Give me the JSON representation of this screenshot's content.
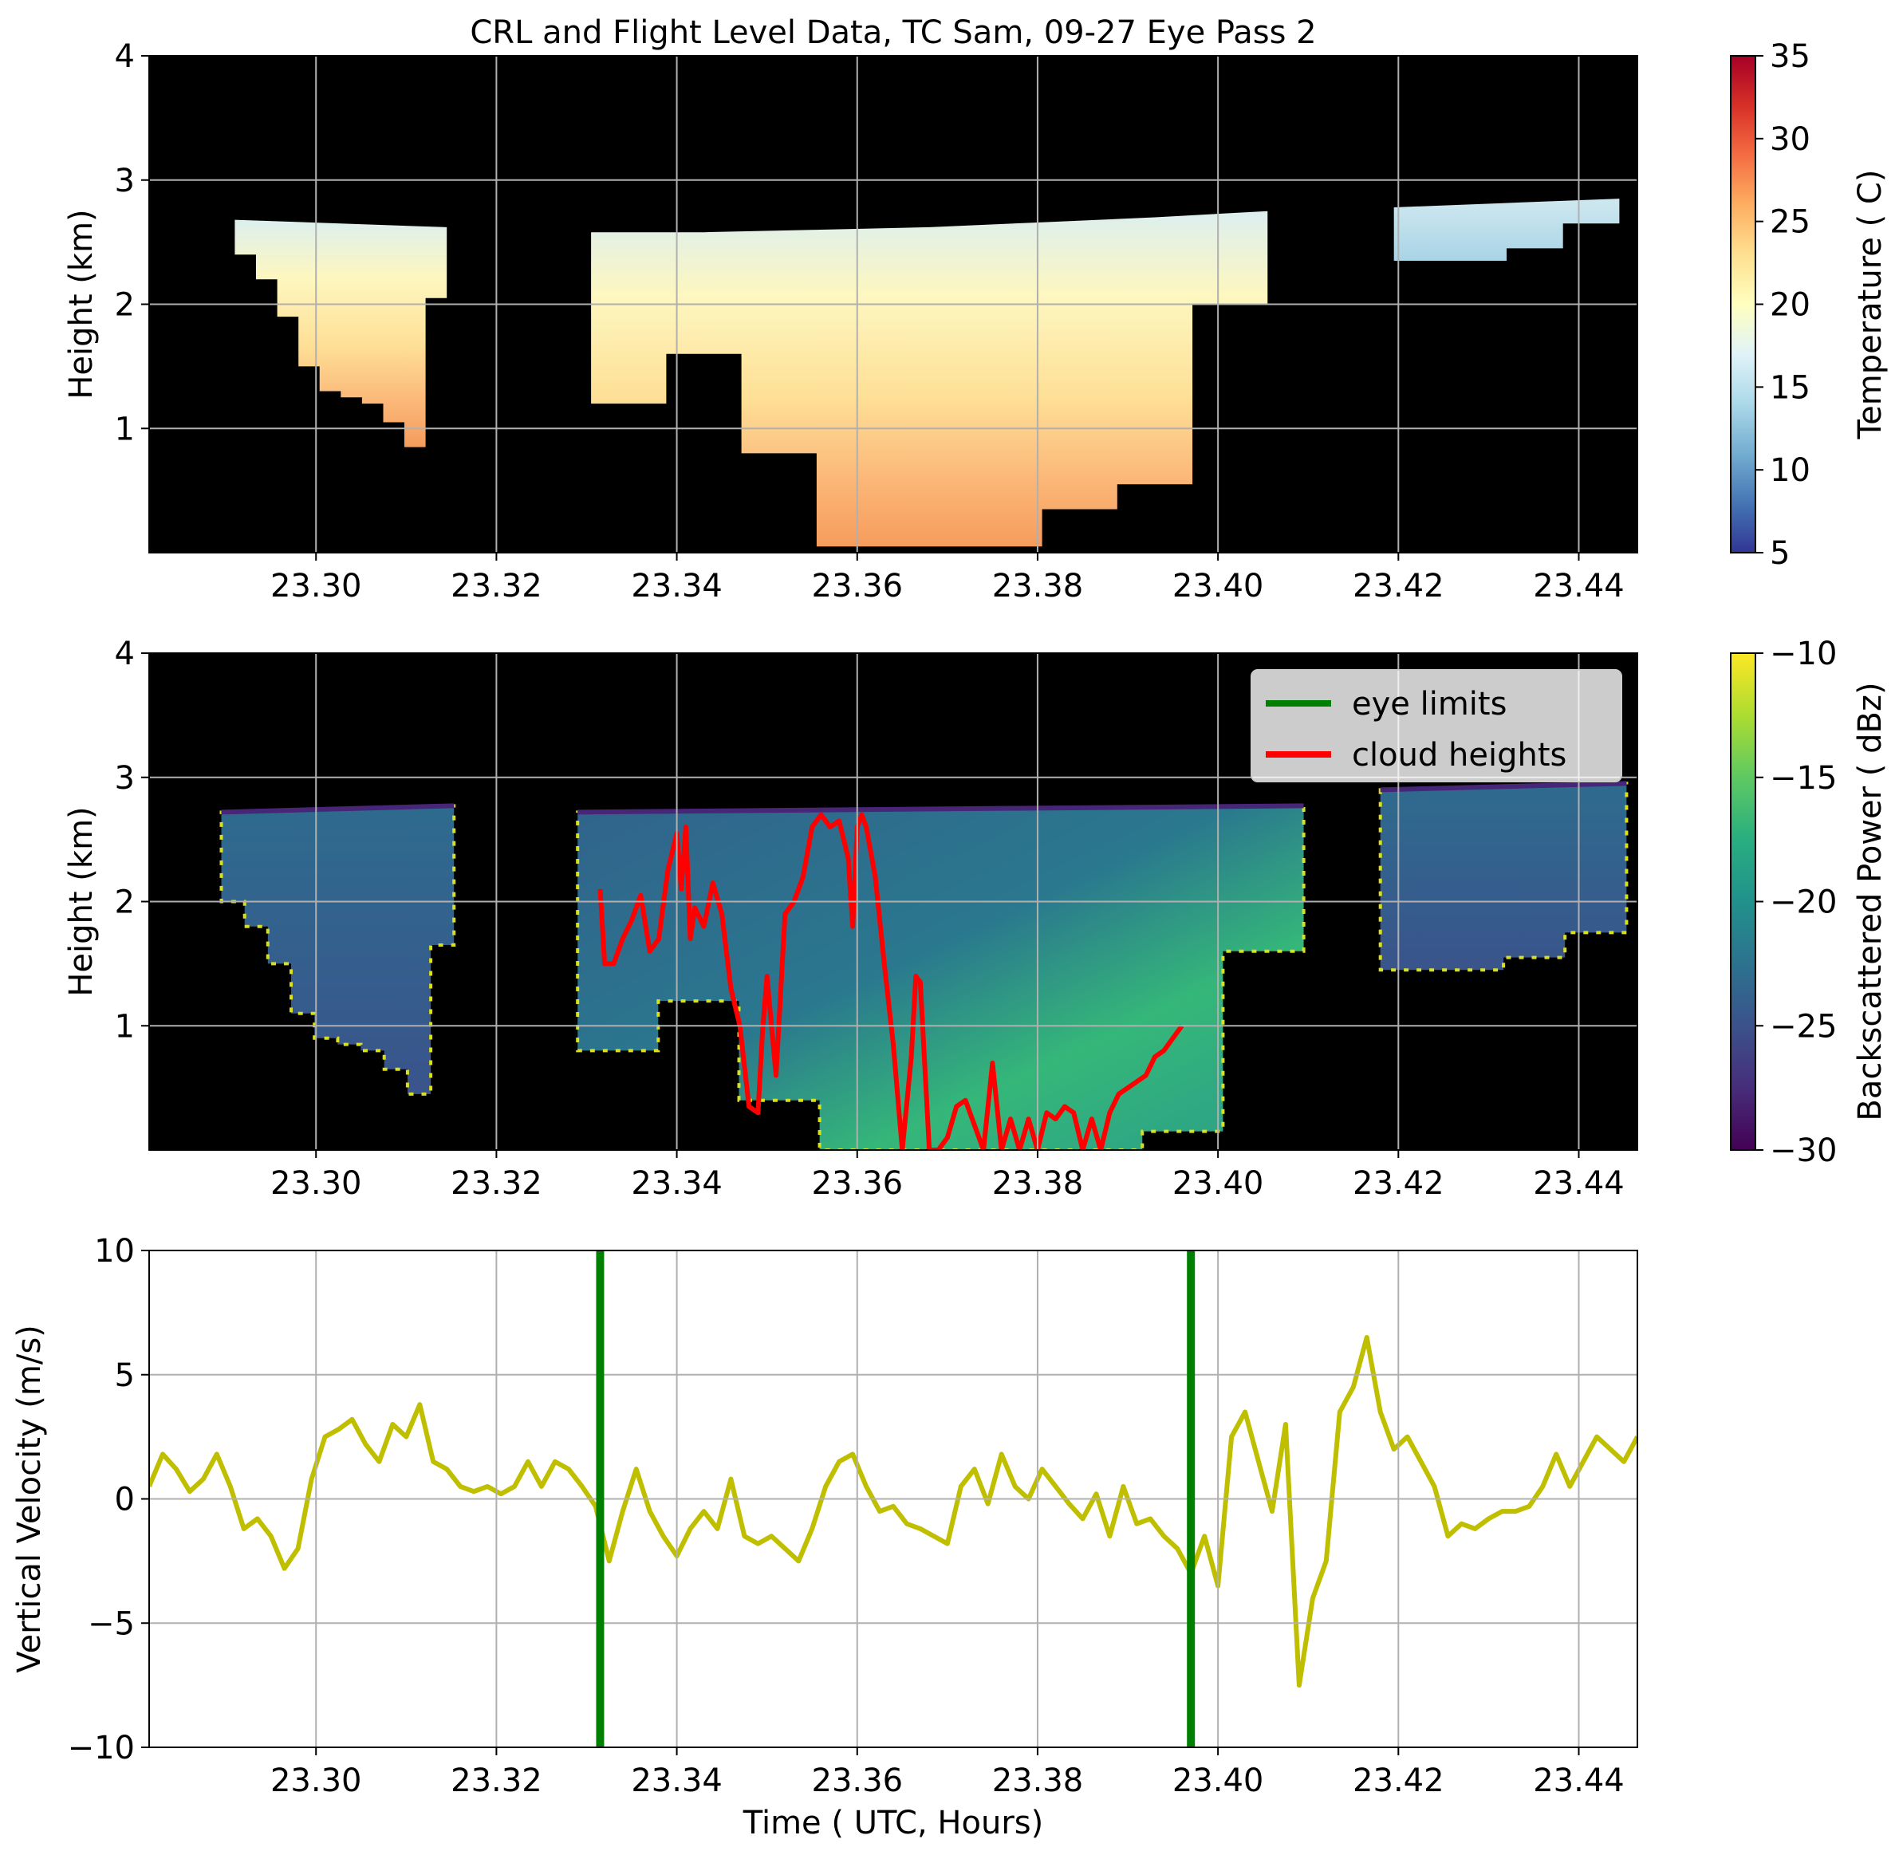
{
  "chart_data": [
    {
      "type": "heatmap",
      "title": "CRL and Flight Level Data, TC Sam, 09-27 Eye Pass 2",
      "xlabel": "",
      "ylabel": "Height (km)",
      "xlim": [
        23.2815,
        23.4465
      ],
      "ylim": [
        0.0,
        4.0
      ],
      "xticks": [
        23.3,
        23.32,
        23.34,
        23.36,
        23.38,
        23.4,
        23.42,
        23.44
      ],
      "xtick_labels": [
        "23.30",
        "23.32",
        "23.34",
        "23.36",
        "23.38",
        "23.40",
        "23.42",
        "23.44"
      ],
      "yticks": [
        1,
        2,
        3,
        4
      ],
      "ytick_labels": [
        "1",
        "2",
        "3",
        "4"
      ],
      "grid": true,
      "background": "#000000",
      "colorbar": {
        "label": "Temperature ( C)",
        "colormap": "RdYlBu_r",
        "range": [
          5,
          35
        ],
        "ticks": [
          5,
          10,
          15,
          20,
          25,
          30,
          35
        ],
        "tick_labels": [
          "5",
          "10",
          "15",
          "20",
          "25",
          "30",
          "35"
        ]
      },
      "regions": [
        {
          "x": [
            23.291,
            23.3145
          ],
          "top": [
            2.68,
            2.62
          ],
          "bottom": [
            2.4,
            2.2,
            1.9,
            1.5,
            1.3,
            1.25,
            1.2,
            1.05,
            0.85,
            2.05
          ]
        },
        {
          "x": [
            23.3305,
            23.4055
          ],
          "top": [
            2.58,
            2.58,
            2.6,
            2.62,
            2.66,
            2.7,
            2.75
          ],
          "bottom": [
            1.2,
            1.6,
            0.8,
            0.05,
            0.05,
            0.05,
            0.35,
            0.55,
            2.0
          ]
        },
        {
          "x": [
            23.4195,
            23.4445
          ],
          "top": [
            2.78,
            2.85
          ],
          "bottom": [
            2.35,
            2.35,
            2.45,
            2.65
          ]
        }
      ]
    },
    {
      "type": "heatmap",
      "title": "",
      "xlabel": "",
      "ylabel": "Height (km)",
      "xlim": [
        23.2815,
        23.4465
      ],
      "ylim": [
        0.0,
        4.0
      ],
      "xticks": [
        23.3,
        23.32,
        23.34,
        23.36,
        23.38,
        23.4,
        23.42,
        23.44
      ],
      "xtick_labels": [
        "23.30",
        "23.32",
        "23.34",
        "23.36",
        "23.38",
        "23.40",
        "23.42",
        "23.44"
      ],
      "yticks": [
        1,
        2,
        3,
        4
      ],
      "ytick_labels": [
        "1",
        "2",
        "3",
        "4"
      ],
      "grid": true,
      "background": "#000000",
      "legend": {
        "placement": "top-right",
        "entries": [
          {
            "name": "eye limits",
            "color": "#008000"
          },
          {
            "name": "cloud heights",
            "color": "#ff0000"
          }
        ]
      },
      "colorbar": {
        "label": "Backscattered Power ( dBz)",
        "colormap": "viridis",
        "range": [
          -30,
          -10
        ],
        "ticks": [
          -30,
          -25,
          -20,
          -15,
          -10
        ],
        "tick_labels": [
          "−30",
          "−25",
          "−20",
          "−15",
          "−10"
        ]
      },
      "series": [
        {
          "name": "cloud heights",
          "color": "#ff0000",
          "x": [
            23.3315,
            23.332,
            23.333,
            23.334,
            23.335,
            23.336,
            23.337,
            23.338,
            23.339,
            23.34,
            23.3405,
            23.341,
            23.3415,
            23.342,
            23.343,
            23.344,
            23.345,
            23.346,
            23.347,
            23.348,
            23.349,
            23.3495,
            23.35,
            23.351,
            23.352,
            23.353,
            23.354,
            23.355,
            23.356,
            23.357,
            23.358,
            23.359,
            23.3595,
            23.36,
            23.3605,
            23.361,
            23.362,
            23.363,
            23.364,
            23.365,
            23.366,
            23.3665,
            23.367,
            23.368,
            23.369,
            23.37,
            23.371,
            23.372,
            23.373,
            23.374,
            23.375,
            23.376,
            23.377,
            23.378,
            23.379,
            23.38,
            23.381,
            23.382,
            23.383,
            23.384,
            23.385,
            23.386,
            23.387,
            23.388,
            23.389,
            23.39,
            23.391,
            23.392,
            23.393,
            23.394,
            23.395,
            23.396
          ],
          "y": [
            2.1,
            1.5,
            1.5,
            1.7,
            1.85,
            2.05,
            1.6,
            1.7,
            2.25,
            2.55,
            2.1,
            2.6,
            1.7,
            1.95,
            1.8,
            2.15,
            1.9,
            1.3,
            1.0,
            0.35,
            0.3,
            0.95,
            1.4,
            0.6,
            1.9,
            2.0,
            2.2,
            2.6,
            2.7,
            2.6,
            2.65,
            2.35,
            1.8,
            2.6,
            2.7,
            2.6,
            2.2,
            1.5,
            0.85,
            0.0,
            0.75,
            1.4,
            1.35,
            0.0,
            0.0,
            0.1,
            0.35,
            0.4,
            0.2,
            0.0,
            0.7,
            0.0,
            0.25,
            0.0,
            0.25,
            0.0,
            0.3,
            0.25,
            0.35,
            0.3,
            0.0,
            0.25,
            0.0,
            0.3,
            0.45,
            0.5,
            0.55,
            0.6,
            0.75,
            0.8,
            0.9,
            1.0
          ]
        }
      ]
    },
    {
      "type": "line",
      "title": "",
      "xlabel": "Time ( UTC, Hours)",
      "ylabel": "Vertical Velocity (m/s)",
      "xlim": [
        23.2815,
        23.4465
      ],
      "ylim": [
        -10,
        10
      ],
      "xticks": [
        23.3,
        23.32,
        23.34,
        23.36,
        23.38,
        23.4,
        23.42,
        23.44
      ],
      "xtick_labels": [
        "23.30",
        "23.32",
        "23.34",
        "23.36",
        "23.38",
        "23.40",
        "23.42",
        "23.44"
      ],
      "yticks": [
        -10,
        -5,
        0,
        5,
        10
      ],
      "ytick_labels": [
        "−10",
        "−5",
        "0",
        "5",
        "10"
      ],
      "grid": true,
      "vlines": [
        {
          "name": "eye limits",
          "color": "#008000",
          "x": [
            23.3315,
            23.397
          ]
        }
      ],
      "series": [
        {
          "name": "vertical velocity",
          "color": "#bfbf00",
          "x": [
            23.2815,
            23.283,
            23.2845,
            23.286,
            23.2875,
            23.289,
            23.2905,
            23.292,
            23.2935,
            23.295,
            23.2965,
            23.298,
            23.2995,
            23.301,
            23.3025,
            23.304,
            23.3055,
            23.307,
            23.3085,
            23.31,
            23.3115,
            23.313,
            23.3145,
            23.316,
            23.3175,
            23.319,
            23.3205,
            23.322,
            23.3235,
            23.325,
            23.3265,
            23.328,
            23.3295,
            23.331,
            23.3325,
            23.334,
            23.3355,
            23.337,
            23.3385,
            23.34,
            23.3415,
            23.343,
            23.3445,
            23.346,
            23.3475,
            23.349,
            23.3505,
            23.352,
            23.3535,
            23.355,
            23.3565,
            23.358,
            23.3595,
            23.361,
            23.3625,
            23.364,
            23.3655,
            23.367,
            23.3685,
            23.37,
            23.3715,
            23.373,
            23.3745,
            23.376,
            23.3775,
            23.379,
            23.3805,
            23.382,
            23.3835,
            23.385,
            23.3865,
            23.388,
            23.3895,
            23.391,
            23.3925,
            23.394,
            23.3955,
            23.397,
            23.3985,
            23.4,
            23.4015,
            23.403,
            23.4045,
            23.406,
            23.4075,
            23.409,
            23.4105,
            23.412,
            23.4135,
            23.415,
            23.4165,
            23.418,
            23.4195,
            23.421,
            23.4225,
            23.424,
            23.4255,
            23.427,
            23.4285,
            23.43,
            23.4315,
            23.433,
            23.4345,
            23.436,
            23.4375,
            23.439,
            23.4405,
            23.442,
            23.4435,
            23.445,
            23.4465
          ],
          "y": [
            0.5,
            1.8,
            1.2,
            0.3,
            0.8,
            1.8,
            0.5,
            -1.2,
            -0.8,
            -1.5,
            -2.8,
            -2.0,
            0.8,
            2.5,
            2.8,
            3.2,
            2.2,
            1.5,
            3.0,
            2.5,
            3.8,
            1.5,
            1.2,
            0.5,
            0.3,
            0.5,
            0.2,
            0.5,
            1.5,
            0.5,
            1.5,
            1.2,
            0.5,
            -0.3,
            -2.5,
            -0.5,
            1.2,
            -0.5,
            -1.5,
            -2.3,
            -1.2,
            -0.5,
            -1.2,
            0.8,
            -1.5,
            -1.8,
            -1.5,
            -2.0,
            -2.5,
            -1.2,
            0.5,
            1.5,
            1.8,
            0.5,
            -0.5,
            -0.3,
            -1.0,
            -1.2,
            -1.5,
            -1.8,
            0.5,
            1.2,
            -0.2,
            1.8,
            0.5,
            0.0,
            1.2,
            0.5,
            -0.2,
            -0.8,
            0.2,
            -1.5,
            0.5,
            -1.0,
            -0.8,
            -1.5,
            -2.0,
            -3.0,
            -1.5,
            -3.5,
            2.5,
            3.5,
            1.5,
            -0.5,
            3.0,
            -7.5,
            -4.0,
            -2.5,
            3.5,
            4.5,
            6.5,
            3.5,
            2.0,
            2.5,
            1.5,
            0.5,
            -1.5,
            -1.0,
            -1.2,
            -0.8,
            -0.5,
            -0.5,
            -0.3,
            0.5,
            1.8,
            0.5,
            1.5,
            2.5,
            2.0,
            1.5,
            2.5
          ]
        }
      ]
    }
  ]
}
